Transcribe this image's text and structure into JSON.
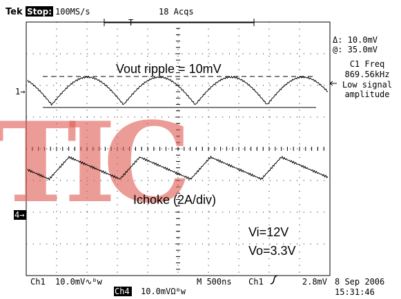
{
  "header": {
    "brand": "Tek",
    "state": "Stop:",
    "sample_rate": "100MS/s",
    "acquisitions": "18 Acqs",
    "trigger_marker": "T"
  },
  "readouts": {
    "delta": "Δ: 10.0mV",
    "at": "@: 35.0mV",
    "measurement": "C1 Freq",
    "frequency": "869.56kHz",
    "status_1": "Low signal",
    "status_2": "amplitude"
  },
  "markers": {
    "ch1": "1→",
    "ch4": "4→"
  },
  "annotations": {
    "ripple": "Vout ripple = 10mV",
    "choke": "Ichoke (2A/div)",
    "vin": "Vi=12V",
    "vout": "Vo=3.3V"
  },
  "watermark": "TIC",
  "footer": {
    "ch1_label": "Ch1",
    "ch1_scale": "10.0mV∿ᴮw",
    "ch4_label": "Ch4",
    "ch4_scale": "10.0mVΩᴮw",
    "timebase": "M 500ns",
    "trigger_source": "Ch1",
    "trigger_level": "2.8mV",
    "date": "8 Sep 2006",
    "time": "15:31:46"
  }
}
